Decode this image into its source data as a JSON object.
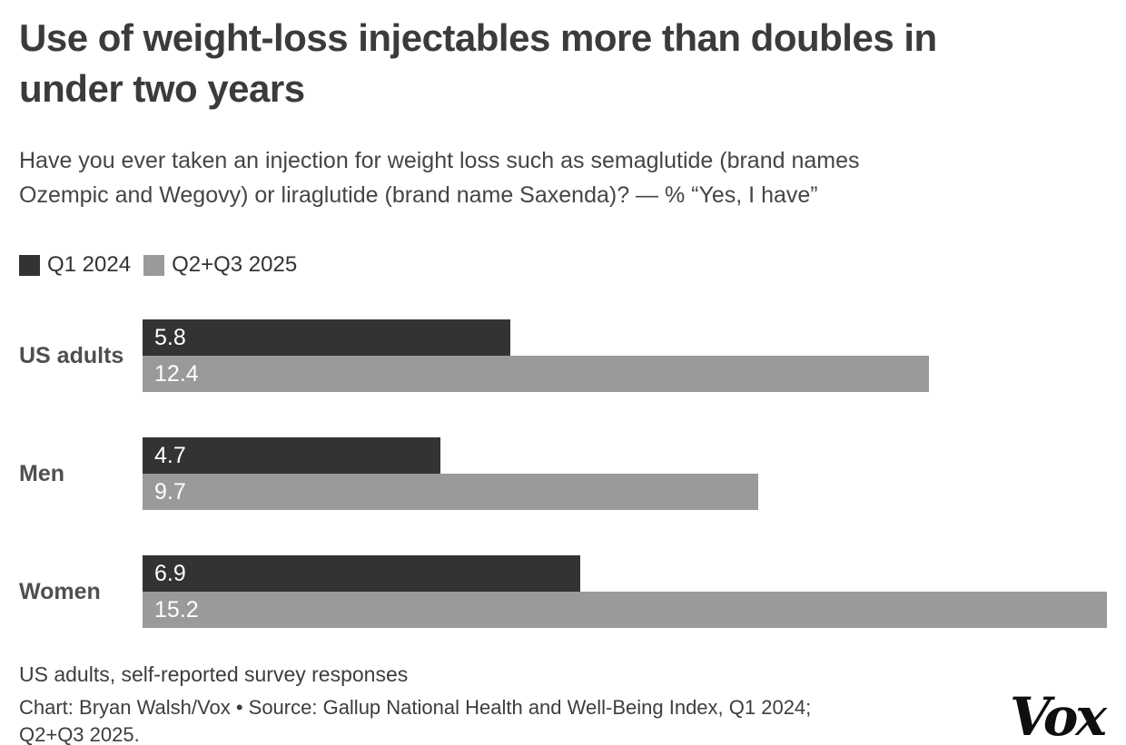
{
  "header": {
    "title": "Use of weight-loss injectables more than doubles in under two years",
    "title_lines": [
      "Use of weight-loss injectables more than doubles in",
      "under two years"
    ],
    "subtitle": "Have you ever taken an injection for weight loss such as semaglutide (brand names Ozempic and Wegovy) or liraglutide (brand name Saxenda)? — % “Yes, I have”",
    "subtitle_lines": [
      "Have you ever taken an injection for weight loss such as semaglutide (brand names",
      "Ozempic and Wegovy) or liraglutide (brand name Saxenda)? — % “Yes, I have”"
    ]
  },
  "legend": [
    {
      "label": "Q1 2024",
      "color": "#333333"
    },
    {
      "label": "Q2+Q3 2025",
      "color": "#9a9a9a"
    }
  ],
  "chart_data": {
    "type": "bar",
    "orientation": "horizontal",
    "title": "Use of weight-loss injectables more than doubles in under two years",
    "categories": [
      "US adults",
      "Men",
      "Women"
    ],
    "series": [
      {
        "name": "Q1 2024",
        "color": "#333333",
        "values": [
          5.8,
          4.7,
          6.9
        ]
      },
      {
        "name": "Q2+Q3 2025",
        "color": "#9a9a9a",
        "values": [
          12.4,
          9.7,
          15.2
        ]
      }
    ],
    "xlim": [
      0,
      15.2
    ],
    "value_labels": "inside-left",
    "value_label_color": "#ffffff",
    "grid": false,
    "legend_position": "top-left",
    "unit": "% “Yes, I have”"
  },
  "footer": {
    "note": "US adults, self-reported survey responses",
    "credit": "Chart: Bryan Walsh/Vox • Source: Gallup National Health and Well-Being Index, Q1 2024; Q2+Q3 2025.",
    "credit_lines": [
      "Chart: Bryan Walsh/Vox • Source: Gallup National Health and Well-Being Index, Q1 2024;",
      "Q2+Q3 2025."
    ],
    "logo": "Vox"
  }
}
